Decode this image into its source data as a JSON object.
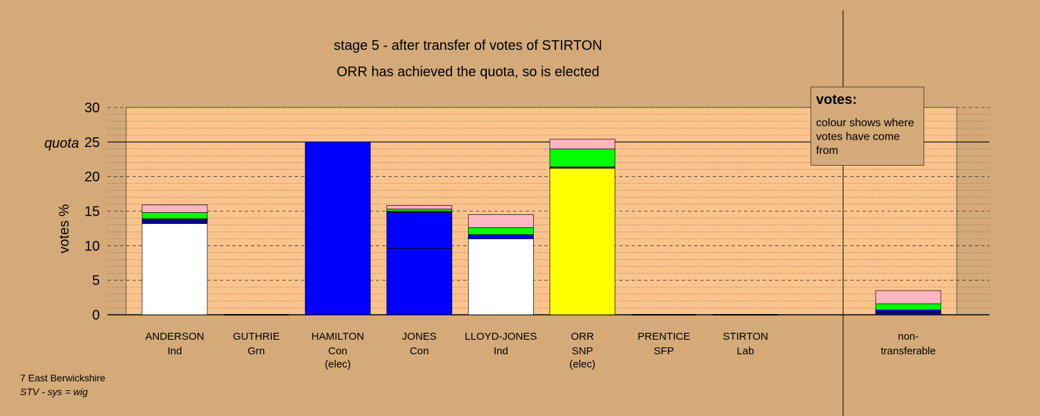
{
  "chart_data": {
    "type": "bar",
    "stacked": true,
    "title": "stage 5 - after transfer of votes of STIRTON",
    "subtitle": "ORR has achieved the quota, so is elected",
    "ylabel": "votes %",
    "ylim": [
      0,
      30
    ],
    "yticks": [
      0,
      5,
      10,
      15,
      20,
      25,
      30
    ],
    "quota": 25,
    "quota_label": "quota",
    "grid": true,
    "colors": {
      "background": "#d4aa78",
      "plot_area": "#fcc48c",
      "white": "#ffffff",
      "navy": "#0a0a8c",
      "blue": "#0000ff",
      "green": "#00ff00",
      "pink": "#ffb6c1",
      "yellow": "#ffff00"
    },
    "candidates": [
      {
        "name": "ANDERSON",
        "party": "Ind",
        "status": "",
        "segments": [
          {
            "color": "white",
            "value": 13.2
          },
          {
            "color": "navy",
            "value": 0.4
          },
          {
            "color": "blue",
            "value": 0.3
          },
          {
            "color": "green",
            "value": 0.9
          },
          {
            "color": "pink",
            "value": 1.1
          }
        ]
      },
      {
        "name": "GUTHRIE",
        "party": "Grn",
        "status": "",
        "segments": []
      },
      {
        "name": "HAMILTON",
        "party": "Con",
        "status": "(elec)",
        "segments": [
          {
            "color": "blue",
            "value": 25.0
          }
        ]
      },
      {
        "name": "JONES",
        "party": "Con",
        "status": "",
        "segments": [
          {
            "color": "blue",
            "value": 9.6
          },
          {
            "color": "blue",
            "value": 5.2
          },
          {
            "color": "navy",
            "value": 0.2
          },
          {
            "color": "green",
            "value": 0.3
          },
          {
            "color": "pink",
            "value": 0.5
          }
        ]
      },
      {
        "name": "LLOYD-JONES",
        "party": "Ind",
        "status": "",
        "segments": [
          {
            "color": "white",
            "value": 11.0
          },
          {
            "color": "blue",
            "value": 0.6
          },
          {
            "color": "green",
            "value": 1.0
          },
          {
            "color": "pink",
            "value": 1.9
          }
        ]
      },
      {
        "name": "ORR",
        "party": "SNP",
        "status": "(elec)",
        "segments": [
          {
            "color": "yellow",
            "value": 21.2
          },
          {
            "color": "navy",
            "value": 0.2
          },
          {
            "color": "green",
            "value": 2.6
          },
          {
            "color": "pink",
            "value": 1.4
          }
        ]
      },
      {
        "name": "PRENTICE",
        "party": "SFP",
        "status": "",
        "segments": []
      },
      {
        "name": "STIRTON",
        "party": "Lab",
        "status": "",
        "segments": []
      }
    ],
    "non_transferable": {
      "label_line1": "non-",
      "label_line2": "transferable",
      "segments": [
        {
          "color": "navy",
          "value": 0.4
        },
        {
          "color": "blue",
          "value": 0.3
        },
        {
          "color": "green",
          "value": 0.9
        },
        {
          "color": "pink",
          "value": 1.9
        }
      ]
    },
    "legend": {
      "title": "votes:",
      "text": "colour shows where votes have come from",
      "placement": "top-right"
    }
  },
  "footer": {
    "line1": "7 East Berwickshire",
    "line2": "STV - sys = wig"
  }
}
